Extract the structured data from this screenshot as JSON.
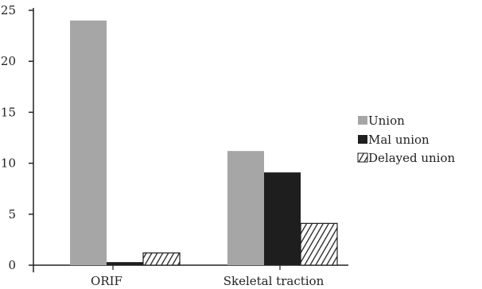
{
  "chart_data": {
    "type": "bar",
    "categories": [
      "ORIF",
      "Skeletal traction"
    ],
    "series": [
      {
        "name": "Union",
        "values": [
          24,
          11.2
        ],
        "color": "#a6a6a6",
        "pattern": "solid"
      },
      {
        "name": "Mal union",
        "values": [
          0.3,
          9.1
        ],
        "color": "#1e1e1e",
        "pattern": "solid"
      },
      {
        "name": "Delayed union",
        "values": [
          1.2,
          4.1
        ],
        "color": "#1e1e1e",
        "pattern": "hatch"
      }
    ],
    "yticks": [
      0,
      5,
      10,
      15,
      20,
      25
    ],
    "ylim": [
      0,
      25
    ],
    "title": "",
    "xlabel": "",
    "ylabel": "",
    "grid": false,
    "legend_position": "right"
  }
}
